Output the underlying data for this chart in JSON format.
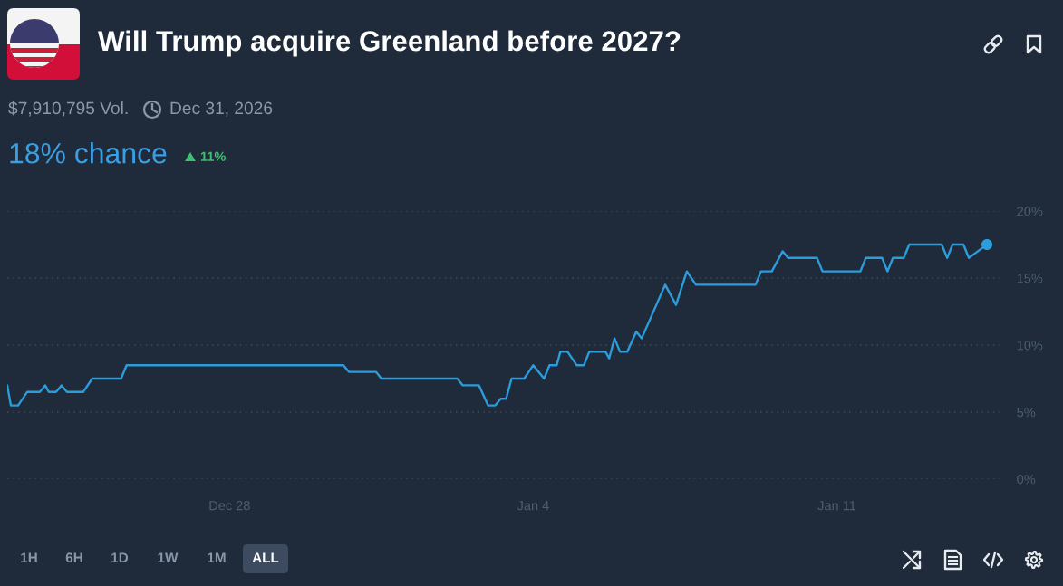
{
  "chart_data": {
    "type": "line",
    "title": "Will Trump acquire Greenland before 2027?",
    "annotations": [
      "$7,910,795 Vol.",
      "Dec 31, 2026",
      "18% chance",
      "11%",
      "1H",
      "6H",
      "1D",
      "1W",
      "1M",
      "ALL"
    ],
    "x": [
      "2025-12-22T21:00",
      "2025-12-22T23:00",
      "2025-12-23T03:00",
      "2025-12-23T08:00",
      "2025-12-23T15:00",
      "2025-12-23T18:00",
      "2025-12-23T20:00",
      "2025-12-24T00:00",
      "2025-12-24T03:00",
      "2025-12-24T06:00",
      "2025-12-24T15:00",
      "2025-12-24T20:00",
      "2025-12-25T12:00",
      "2025-12-25T15:00",
      "2025-12-30T15:00",
      "2025-12-30T18:00",
      "2025-12-31T09:00",
      "2025-12-31T12:00",
      "2026-01-02T06:00",
      "2026-01-02T09:00",
      "2026-01-02T18:00",
      "2026-01-02T23:00",
      "2026-01-03T03:00",
      "2026-01-03T06:00",
      "2026-01-03T09:00",
      "2026-01-03T12:00",
      "2026-01-03T19:00",
      "2026-01-04T00:00",
      "2026-01-04T06:00",
      "2026-01-04T09:00",
      "2026-01-04T13:00",
      "2026-01-04T15:00",
      "2026-01-04T19:00",
      "2026-01-05T00:00",
      "2026-01-05T04:00",
      "2026-01-05T07:00",
      "2026-01-05T16:00",
      "2026-01-05T18:00",
      "2026-01-05T21:00",
      "2026-01-06T00:00",
      "2026-01-06T04:00",
      "2026-01-06T09:00",
      "2026-01-06T12:00",
      "2026-01-07T01:00",
      "2026-01-07T07:00",
      "2026-01-07T13:00",
      "2026-01-07T18:00",
      "2026-01-09T03:00",
      "2026-01-09T06:00",
      "2026-01-09T12:00",
      "2026-01-09T18:00",
      "2026-01-09T21:00",
      "2026-01-10T13:00",
      "2026-01-10T16:00",
      "2026-01-11T13:00",
      "2026-01-11T16:00",
      "2026-01-12T01:00",
      "2026-01-12T04:00",
      "2026-01-12T07:00",
      "2026-01-12T13:00",
      "2026-01-12T16:00",
      "2026-01-13T10:00",
      "2026-01-13T13:00",
      "2026-01-13T16:00",
      "2026-01-13T22:00",
      "2026-01-14T01:00",
      "2026-01-14T06:00",
      "2026-01-14T11:00"
    ],
    "series": [
      {
        "color": "#2d9cdb",
        "line_style": "solid",
        "values": [
          7,
          5.5,
          5.5,
          6.5,
          6.5,
          7,
          6.5,
          6.5,
          7,
          6.5,
          6.5,
          7.5,
          7.5,
          8.5,
          8.5,
          8,
          8,
          7.5,
          7.5,
          7,
          7,
          5.5,
          5.5,
          6,
          6,
          7.5,
          7.5,
          8.5,
          7.5,
          8.5,
          8.5,
          9.5,
          9.5,
          8.5,
          8.5,
          9.5,
          9.5,
          9,
          10.5,
          9.5,
          9.5,
          11,
          10.5,
          14.5,
          13,
          15.5,
          14.5,
          14.5,
          15.5,
          15.5,
          17,
          16.5,
          16.5,
          15.5,
          15.5,
          16.5,
          16.5,
          15.5,
          16.5,
          16.5,
          17.5,
          17.5,
          16.5,
          17.5,
          17.5,
          16.5,
          17,
          17.5
        ]
      },
      {
        "type": "scatter",
        "marker": "circle",
        "color": "#2d9cdb",
        "x": [
          "2026-01-14T11:00"
        ],
        "values": [
          17.5
        ]
      }
    ],
    "xlim": [
      "2025-12-22T21:00",
      "2026-01-14T19:00"
    ],
    "xticks": [
      {
        "value": "2025-12-28",
        "label": "Dec 28"
      },
      {
        "value": "2026-01-04",
        "label": "Jan 4"
      },
      {
        "value": "2026-01-11",
        "label": "Jan 11"
      }
    ],
    "ylim": [
      0,
      20
    ],
    "yticks": [
      {
        "value": 0,
        "label": "0%"
      },
      {
        "value": 5,
        "label": "5%"
      },
      {
        "value": 10,
        "label": "10%"
      },
      {
        "value": 15,
        "label": "15%"
      },
      {
        "value": 20,
        "label": "20%"
      }
    ],
    "grid": "y"
  }
}
